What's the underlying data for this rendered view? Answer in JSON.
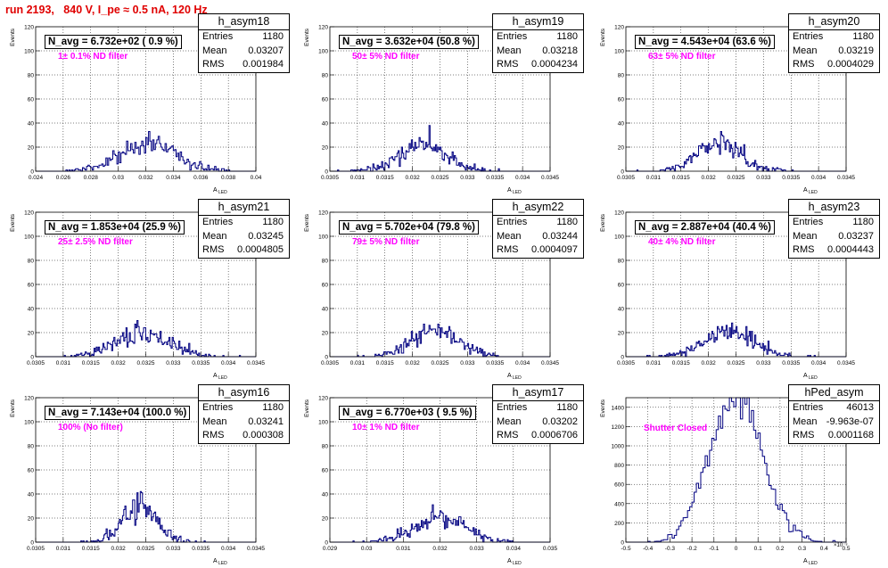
{
  "page": {
    "title": "run 2193,   840 V, I_pe ≈ 0.5 nA, 120 Hz"
  },
  "stat_labels": {
    "entries": "Entries",
    "mean": "Mean",
    "rms": "RMS"
  },
  "y_axis_label": "Events",
  "x_axis_label": "A",
  "x_axis_subscript": "LED",
  "colors": {
    "hist_line": "#000080",
    "title_red": "#e00000",
    "filter_magenta": "#ff00ff"
  },
  "chart_data": [
    {
      "type": "bar",
      "name": "h_asym18",
      "navg": "N_avg = 6.732e+02 ( 0.9 %)",
      "filter": "1± 0.1% ND filter",
      "entries": "1180",
      "mean": "0.03207",
      "rms": "0.001984",
      "xlim": [
        0.024,
        0.04
      ],
      "ylim": [
        0,
        120
      ],
      "xticks": [
        "0.024",
        "0.026",
        "0.028",
        "0.03",
        "0.032",
        "0.034",
        "0.036",
        "0.038",
        "0.04"
      ],
      "yticks": [
        "0",
        "20",
        "40",
        "60",
        "80",
        "100",
        "120"
      ],
      "dist": {
        "n": 1180,
        "mean": 0.03207,
        "sd": 0.001984,
        "binw": 0.0001,
        "seed": 18
      }
    },
    {
      "type": "bar",
      "name": "h_asym19",
      "navg": "N_avg = 3.632e+04 (50.8 %)",
      "filter": "50± 5% ND filter",
      "entries": "1180",
      "mean": "0.03218",
      "rms": "0.0004234",
      "xlim": [
        0.0305,
        0.0345
      ],
      "ylim": [
        0,
        120
      ],
      "xticks": [
        "0.0305",
        "0.031",
        "0.0315",
        "0.032",
        "0.0325",
        "0.033",
        "0.0335",
        "0.034",
        "0.0345"
      ],
      "yticks": [
        "0",
        "20",
        "40",
        "60",
        "80",
        "100",
        "120"
      ],
      "dist": {
        "n": 1180,
        "mean": 0.03218,
        "sd": 0.0004234,
        "binw": 2e-05,
        "seed": 19
      }
    },
    {
      "type": "bar",
      "name": "h_asym20",
      "navg": "N_avg = 4.543e+04 (63.6 %)",
      "filter": "63± 5% ND filter",
      "entries": "1180",
      "mean": "0.03219",
      "rms": "0.0004029",
      "xlim": [
        0.0305,
        0.0345
      ],
      "ylim": [
        0,
        120
      ],
      "xticks": [
        "0.0305",
        "0.031",
        "0.0315",
        "0.032",
        "0.0325",
        "0.033",
        "0.0335",
        "0.034",
        "0.0345"
      ],
      "yticks": [
        "0",
        "20",
        "40",
        "60",
        "80",
        "100",
        "120"
      ],
      "dist": {
        "n": 1180,
        "mean": 0.03219,
        "sd": 0.0004029,
        "binw": 2e-05,
        "seed": 20
      }
    },
    {
      "type": "bar",
      "name": "h_asym21",
      "navg": "N_avg = 1.853e+04 (25.9 %)",
      "filter": "25± 2.5% ND filter",
      "entries": "1180",
      "mean": "0.03245",
      "rms": "0.0004805",
      "xlim": [
        0.0305,
        0.0345
      ],
      "ylim": [
        0,
        120
      ],
      "xticks": [
        "0.0305",
        "0.031",
        "0.0315",
        "0.032",
        "0.0325",
        "0.033",
        "0.0335",
        "0.034",
        "0.0345"
      ],
      "yticks": [
        "0",
        "20",
        "40",
        "60",
        "80",
        "100",
        "120"
      ],
      "dist": {
        "n": 1180,
        "mean": 0.03245,
        "sd": 0.0004805,
        "binw": 2e-05,
        "seed": 21
      }
    },
    {
      "type": "bar",
      "name": "h_asym22",
      "navg": "N_avg = 5.702e+04 (79.8 %)",
      "filter": "79± 5% ND filter",
      "entries": "1180",
      "mean": "0.03244",
      "rms": "0.0004097",
      "xlim": [
        0.0305,
        0.0345
      ],
      "ylim": [
        0,
        120
      ],
      "xticks": [
        "0.0305",
        "0.031",
        "0.0315",
        "0.032",
        "0.0325",
        "0.033",
        "0.0335",
        "0.034",
        "0.0345"
      ],
      "yticks": [
        "0",
        "20",
        "40",
        "60",
        "80",
        "100",
        "120"
      ],
      "dist": {
        "n": 1180,
        "mean": 0.03244,
        "sd": 0.0004097,
        "binw": 2e-05,
        "seed": 22
      }
    },
    {
      "type": "bar",
      "name": "h_asym23",
      "navg": "N_avg = 2.887e+04 (40.4 %)",
      "filter": "40± 4% ND filter",
      "entries": "1180",
      "mean": "0.03237",
      "rms": "0.0004443",
      "xlim": [
        0.0305,
        0.0345
      ],
      "ylim": [
        0,
        120
      ],
      "xticks": [
        "0.0305",
        "0.031",
        "0.0315",
        "0.032",
        "0.0325",
        "0.033",
        "0.0335",
        "0.034",
        "0.0345"
      ],
      "yticks": [
        "0",
        "20",
        "40",
        "60",
        "80",
        "100",
        "120"
      ],
      "dist": {
        "n": 1180,
        "mean": 0.03237,
        "sd": 0.0004443,
        "binw": 2e-05,
        "seed": 23
      }
    },
    {
      "type": "bar",
      "name": "h_asym16",
      "navg": "N_avg = 7.143e+04 (100.0 %)",
      "filter": "100% (No filter)",
      "entries": "1180",
      "mean": "0.03241",
      "rms": "0.000308",
      "xlim": [
        0.0305,
        0.0345
      ],
      "ylim": [
        0,
        120
      ],
      "xticks": [
        "0.0305",
        "0.031",
        "0.0315",
        "0.032",
        "0.0325",
        "0.033",
        "0.0335",
        "0.034",
        "0.0345"
      ],
      "yticks": [
        "0",
        "20",
        "40",
        "60",
        "80",
        "100",
        "120"
      ],
      "dist": {
        "n": 1180,
        "mean": 0.03241,
        "sd": 0.000308,
        "binw": 2e-05,
        "seed": 16
      }
    },
    {
      "type": "bar",
      "name": "h_asym17",
      "navg": "N_avg = 6.770e+03 ( 9.5 %)",
      "filter": "10± 1% ND filter",
      "entries": "1180",
      "mean": "0.03202",
      "rms": "0.0006706",
      "xlim": [
        0.029,
        0.035
      ],
      "ylim": [
        0,
        120
      ],
      "xticks": [
        "0.029",
        "0.03",
        "0.031",
        "0.032",
        "0.033",
        "0.034",
        "0.035"
      ],
      "yticks": [
        "0",
        "20",
        "40",
        "60",
        "80",
        "100",
        "120"
      ],
      "dist": {
        "n": 1180,
        "mean": 0.03202,
        "sd": 0.0006706,
        "binw": 3e-05,
        "seed": 17
      }
    },
    {
      "type": "bar",
      "name": "hPed_asym",
      "navg": "",
      "filter": "Shutter Closed",
      "entries": "46013",
      "mean": "-9.963e-07",
      "rms": "0.0001168",
      "xlim": [
        -0.5,
        0.5
      ],
      "ylim": [
        0,
        1500
      ],
      "x_exponent": "×10⁻³",
      "xticks": [
        "-0.5",
        "-0.4",
        "-0.3",
        "-0.2",
        "-0.1",
        "0",
        "0.1",
        "0.2",
        "0.3",
        "0.4",
        "0.5"
      ],
      "yticks": [
        "0",
        "200",
        "400",
        "600",
        "800",
        "1000",
        "1200",
        "1400"
      ],
      "dist": {
        "n": 46013,
        "mean": 0,
        "sd": 0.1168,
        "binw": 0.01,
        "seed": 99
      }
    }
  ]
}
